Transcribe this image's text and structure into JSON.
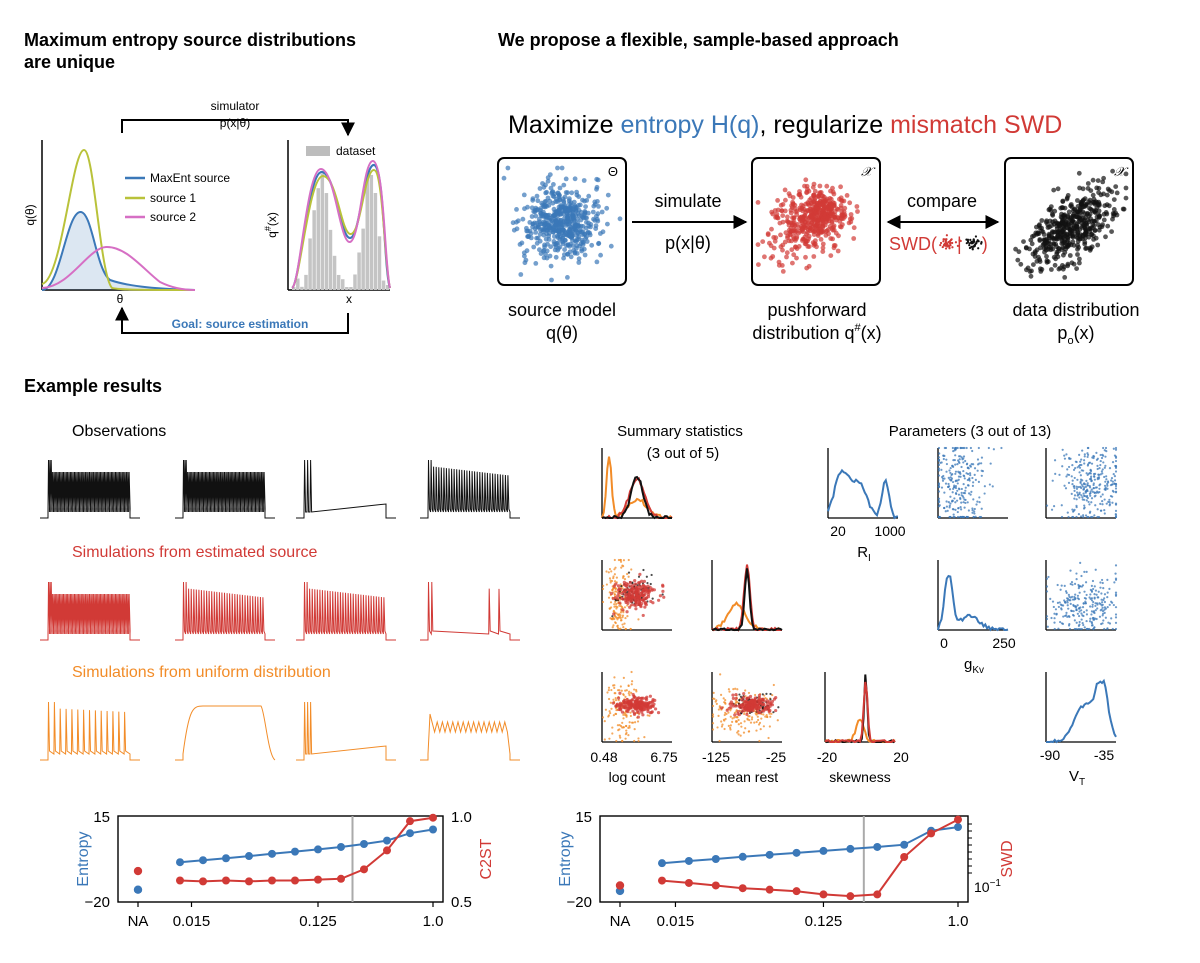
{
  "panel_a": {
    "title_line1": "Maximum entropy source distributions",
    "title_line2": "are unique",
    "simulator_label": "simulator",
    "simulator_formula": "p(x|θ)",
    "goal_label": "Goal: source estimation",
    "left_ylabel": "q(θ)",
    "left_xlabel": "θ",
    "right_ylabel": "q",
    "right_ylabel_sup": "#",
    "right_ylabel_arg": "(x)",
    "right_xlabel": "x",
    "legend": [
      "MaxEnt source",
      "source 1",
      "source 2"
    ],
    "dataset_label": "dataset",
    "colors": {
      "maxent": "#3b78b8",
      "source1": "#b9c23a",
      "source2": "#d66fc4",
      "dataset": "#c0c0c0"
    }
  },
  "panel_b": {
    "title": "We propose a flexible, sample-based approach",
    "headline_black1": "Maximize ",
    "headline_blue": "entropy H(q)",
    "headline_black2": ", regularize ",
    "headline_red": "mismatch SWD",
    "simulate_label": "simulate",
    "simulate_formula": "p(x|θ)",
    "compare_label": "compare",
    "swd_label": "SWD(",
    "swd_sep": "|",
    "swd_close": ")",
    "box1_symbol": "Θ",
    "box2_symbol": "𝒳",
    "box3_symbol": "𝒳",
    "box1_caption_1": "source model",
    "box1_caption_2": "q(θ)",
    "box2_caption_1": "pushforward",
    "box2_caption_2": "distribution q",
    "box2_caption_sup": "#",
    "box2_caption_arg": "(x)",
    "box3_caption_1": "data distribution",
    "box3_caption_p": "p",
    "box3_caption_sub": "o",
    "box3_caption_arg": "(x)",
    "colors": {
      "blue": "#3b78b8",
      "red": "#d13a36",
      "black": "#111111"
    }
  },
  "panel_c": {
    "title": "Example results",
    "observations": "Observations",
    "sim_estimated": "Simulations from estimated source",
    "sim_uniform": "Simulations from uniform distribution",
    "summary_title_1": "Summary statistics",
    "summary_title_2": "(3 out of 5)",
    "params_title": "Parameters (3 out of 13)",
    "summary_xlabels": [
      "log count",
      "mean rest",
      "skewness"
    ],
    "summary_ticks": [
      [
        "0.48",
        "6.75"
      ],
      [
        "-125",
        "-25"
      ],
      [
        "-20",
        "20"
      ]
    ],
    "param_xlabels": [
      "R",
      "g",
      "V"
    ],
    "param_xlabel_subs": [
      "I",
      "Kv",
      "T"
    ],
    "param_ticks": [
      [
        "20",
        "1000"
      ],
      [
        "0",
        "250"
      ],
      [
        "-90",
        "-35"
      ]
    ],
    "colors": {
      "obs": "#111111",
      "est": "#d13a36",
      "uni": "#f28c28",
      "param": "#3b78b8"
    }
  },
  "chart_data": [
    {
      "type": "line",
      "x_ticks": [
        "NA",
        "0.015",
        "0.125",
        "1.0"
      ],
      "ylabel_left": "Entropy",
      "ylabel_right": "C2ST",
      "y_left_ticks": [
        "15",
        "−20"
      ],
      "y_right_ticks": [
        "1.0",
        "0.5"
      ],
      "ylim_left": [
        -20,
        15
      ],
      "ylim_right": [
        0.5,
        1.0
      ],
      "series": [
        {
          "axis": "left",
          "color": "#3b78b8",
          "x_index": [
            0,
            1,
            2,
            3,
            4,
            5,
            6,
            7,
            8,
            9,
            10,
            11,
            12
          ],
          "values": [
            -4.5,
            -3.8,
            -3.0,
            -2.2,
            -1.3,
            -0.4,
            0.5,
            1.4,
            2.4,
            3.6,
            5.0,
            8.0,
            9.5
          ]
        },
        {
          "axis": "right",
          "color": "#d13a36",
          "x_index": [
            0,
            1,
            2,
            3,
            4,
            5,
            6,
            7,
            8,
            9,
            10,
            11,
            12
          ],
          "values": [
            0.63,
            0.625,
            0.62,
            0.625,
            0.62,
            0.625,
            0.625,
            0.63,
            0.635,
            0.69,
            0.8,
            0.97,
            0.99
          ]
        }
      ],
      "na": {
        "entropy": -15.0,
        "metric": 0.68
      },
      "vline_index": 8.5
    },
    {
      "type": "line",
      "x_ticks": [
        "NA",
        "0.015",
        "0.125",
        "1.0"
      ],
      "ylabel_left": "Entropy",
      "ylabel_right": "SWD",
      "y_left_ticks": [
        "15",
        "−20"
      ],
      "y_right_ticks": [
        "10",
        "−1"
      ],
      "ylim_left": [
        -20,
        15
      ],
      "series": [
        {
          "axis": "left",
          "color": "#3b78b8",
          "x_index": [
            0,
            1,
            2,
            3,
            4,
            5,
            6,
            7,
            8,
            9,
            10,
            11,
            12
          ],
          "values": [
            -5.0,
            -4.2,
            -3.3,
            -2.5,
            -1.6,
            -0.8,
            0.0,
            0.8,
            1.6,
            2.4,
            3.3,
            9.0,
            10.5
          ]
        },
        {
          "axis": "right",
          "color": "#d13a36",
          "x_index": [
            0,
            1,
            2,
            3,
            4,
            5,
            6,
            7,
            8,
            9,
            10,
            11,
            12
          ],
          "values": [
            0.14,
            0.15,
            0.14,
            0.13,
            0.12,
            0.115,
            0.11,
            0.1,
            0.095,
            0.1,
            0.3,
            0.6,
            0.9
          ]
        }
      ],
      "na": {
        "entropy": -15.5,
        "metric": 0.13
      },
      "vline_index": 8.5
    }
  ]
}
